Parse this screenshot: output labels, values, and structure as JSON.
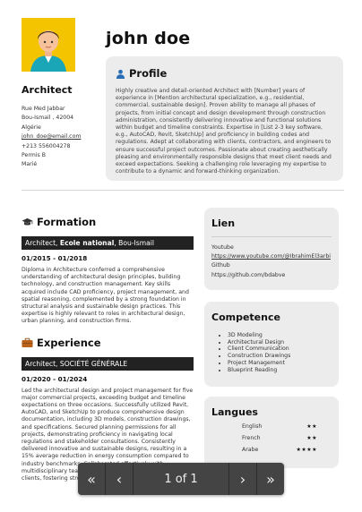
{
  "header": {
    "name": "john doe",
    "job_title": "Architect"
  },
  "contact": {
    "address_line1": "Rue Med Jabbar",
    "address_line2": "Bou-Ismail , 42004",
    "country": "Algérie",
    "email": "john_doe@email.com",
    "phone": "+213 556004278",
    "license": "Permis B",
    "status": "Marié"
  },
  "profile": {
    "title": "Profile",
    "text": "Highly creative and detail-oriented Architect with [Number] years of experience in [Mention architectural specialization, e.g., residential, commercial, sustainable design]. Proven ability to manage all phases of projects, from initial concept and design development through construction administration, consistently delivering innovative and functional solutions within budget and timeline constraints. Expertise in [List 2-3 key software, e.g., AutoCAD, Revit, SketchUp] and proficiency in building codes and regulations. Adept at collaborating with clients, contractors, and engineers to ensure successful project outcomes. Passionate about creating aesthetically pleasing and environmentally responsible designs that meet client needs and exceed expectations. Seeking a challenging role leveraging my expertise to contribute to a dynamic and forward-thinking organization."
  },
  "formation": {
    "title": "Formation",
    "role": "Architect, ",
    "school": "Ecole national",
    "location": ", Bou-Ismail",
    "dates": "01/2015 - 01/2018",
    "text": "Diploma in Architecture conferred a comprehensive understanding of architectural design principles, building technology, and construction management. Key skills acquired include CAD proficiency, project management, and spatial reasoning, complemented by a strong foundation in structural analysis and sustainable design practices. This expertise is highly relevant to roles in architectural design, urban planning, and construction firms."
  },
  "experience": {
    "title": "Experience",
    "role_company": "Architect, SOCIÉTÉ GÉNÉRALE",
    "dates": "01/2020 - 01/2024",
    "text": "Led the architectural design and project management for five major commercial projects, exceeding budget and timeline expectations on three occasions. Successfully utilized Revit, AutoCAD, and SketchUp to produce comprehensive design documentation, including 3D models, construction drawings, and specifications. Secured planning permissions for all projects, demonstrating proficiency in navigating local regulations and stakeholder consultations. Consistently delivered innovative and sustainable designs, resulting in a 15% average reduction in energy consumption compared to industry benchmarks. Collaborated effectively with multidisciplinary teams, including engineers, contractors, and clients, fostering strong working relat"
  },
  "lien": {
    "title": "Lien",
    "youtube_label": "Youtube",
    "youtube_url": "https://www.youtube.com/@IbrahimEl3arbi",
    "github_label": "Github",
    "github_url": "https://github.com/bdabve"
  },
  "competence": {
    "title": "Competence",
    "items": [
      "3D Modeling",
      "Architectural Design",
      "Client Communication",
      "Construction Drawings",
      "Project Management",
      "Blueprint Reading"
    ]
  },
  "langues": {
    "title": "Langues",
    "items": [
      {
        "name": "English",
        "stars": "★★"
      },
      {
        "name": "French",
        "stars": "★★"
      },
      {
        "name": "Arabe",
        "stars": "★★★★"
      }
    ]
  },
  "pager": {
    "first": "«",
    "prev": "‹",
    "status": "1 of 1",
    "next": "›",
    "last": "»"
  }
}
